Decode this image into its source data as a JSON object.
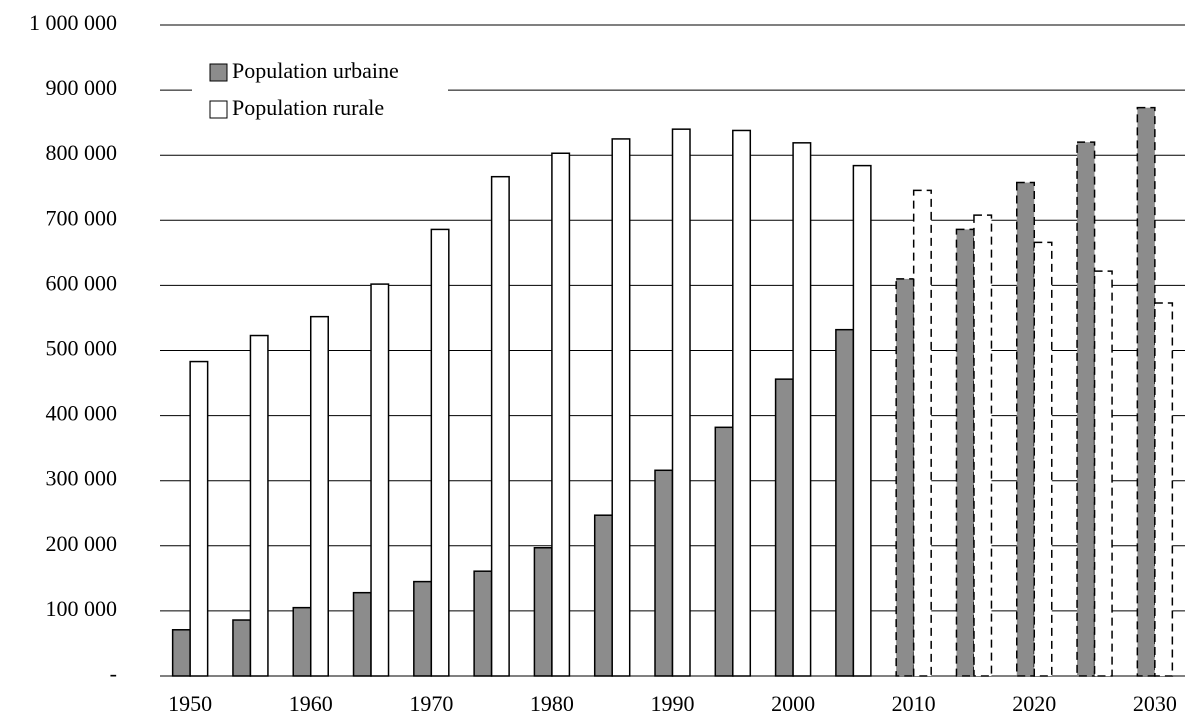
{
  "chart_data": {
    "type": "bar",
    "x": [
      1950,
      1955,
      1960,
      1965,
      1970,
      1975,
      1980,
      1985,
      1990,
      1995,
      2000,
      2005,
      2010,
      2015,
      2020,
      2025,
      2030
    ],
    "xlim": [
      1947.5,
      2032.5
    ],
    "xticks": [
      1950,
      1960,
      1970,
      1980,
      1990,
      2000,
      2010,
      2020,
      2030
    ],
    "series": [
      {
        "name": "Population urbaine",
        "color": "#8c8c8c",
        "values": [
          71000,
          86000,
          105000,
          128000,
          145000,
          161000,
          197000,
          247000,
          316000,
          382000,
          456000,
          532000,
          610000,
          686000,
          758000,
          820000,
          873000
        ]
      },
      {
        "name": "Population rurale",
        "color": "#ffffff",
        "values": [
          483000,
          523000,
          552000,
          602000,
          686000,
          767000,
          803000,
          825000,
          840000,
          838000,
          819000,
          784000,
          746000,
          708000,
          666000,
          622000,
          573000
        ]
      }
    ],
    "dashed_from": 2010,
    "ylim": [
      0,
      1000000
    ],
    "yticks": [
      {
        "value": 0,
        "label": "-"
      },
      {
        "value": 100000,
        "label": "100 000"
      },
      {
        "value": 200000,
        "label": "200 000"
      },
      {
        "value": 300000,
        "label": "300 000"
      },
      {
        "value": 400000,
        "label": "400 000"
      },
      {
        "value": 500000,
        "label": "500 000"
      },
      {
        "value": 600000,
        "label": "600 000"
      },
      {
        "value": 700000,
        "label": "700 000"
      },
      {
        "value": 800000,
        "label": "800 000"
      },
      {
        "value": 900000,
        "label": "900 000"
      },
      {
        "value": 1000000,
        "label": "1 000 000"
      }
    ],
    "grid": true,
    "legend": "top-left"
  }
}
